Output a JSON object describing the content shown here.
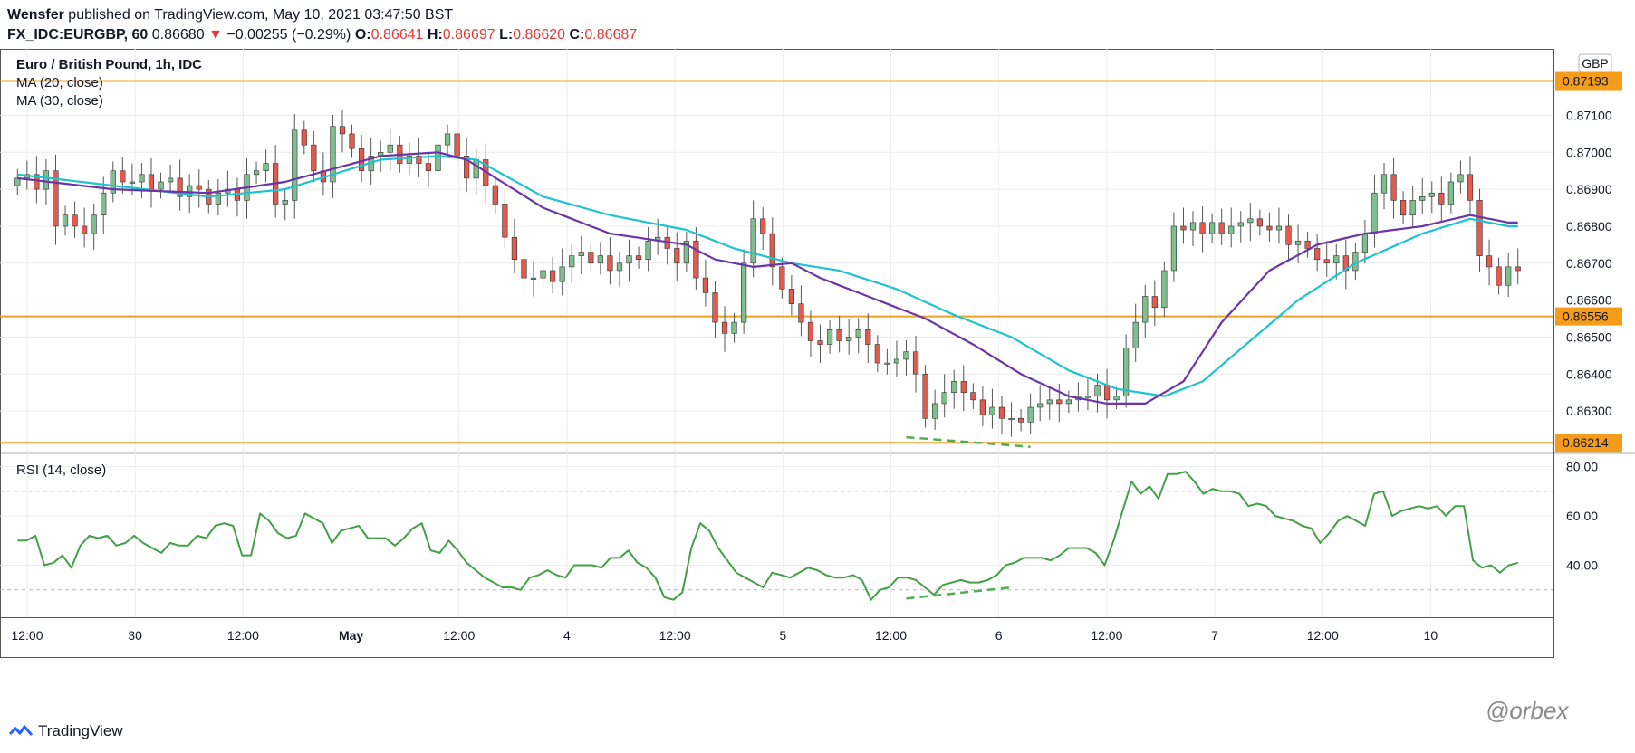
{
  "header": {
    "publisher": "Wensfer",
    "published_text": "published on TradingView.com, May 10, 2021 03:47:50 BST",
    "symbol": "FX_IDC:EURGBP, 60",
    "price": "0.86680",
    "change_arrow": "▼",
    "change": "−0.00255 (−0.29%)",
    "o_label": "O:",
    "o_value": "0.86641",
    "h_label": "H:",
    "h_value": "0.86697",
    "l_label": "L:",
    "l_value": "0.86620",
    "c_label": "C:",
    "c_value": "0.86687"
  },
  "footer": {
    "brand": "TradingView",
    "watermark": "@orbex"
  },
  "chart_data": [
    {
      "type": "candlestick",
      "title": "Euro / British Pound, 1h, IDC",
      "currency": "GBP",
      "indicators": [
        "MA (20, close)",
        "MA (30, close)"
      ],
      "ylim": [
        0.8619,
        0.8728
      ],
      "y_ticks": [
        "0.87100",
        "0.87000",
        "0.86900",
        "0.86800",
        "0.86700",
        "0.86600",
        "0.86500",
        "0.86400",
        "0.86300"
      ],
      "y_tick_values": [
        0.871,
        0.87,
        0.869,
        0.868,
        0.867,
        0.866,
        0.865,
        0.864,
        0.863
      ],
      "x_ticks": [
        "12:00",
        "30",
        "12:00",
        "May",
        "12:00",
        "4",
        "12:00",
        "5",
        "12:00",
        "6",
        "12:00",
        "7",
        "12:00",
        "10"
      ],
      "x_tick_bold": [
        false,
        false,
        false,
        true,
        false,
        false,
        false,
        false,
        false,
        false,
        false,
        false,
        false,
        false
      ],
      "levels": [
        {
          "value": 0.87193,
          "label": "0.87193"
        },
        {
          "value": 0.86556,
          "label": "0.86556"
        },
        {
          "value": 0.86214,
          "label": "0.86214"
        }
      ],
      "candles_close": [
        0.8693,
        0.8694,
        0.869,
        0.8695,
        0.868,
        0.8683,
        0.868,
        0.8678,
        0.8683,
        0.8689,
        0.8695,
        0.8692,
        0.8692,
        0.8694,
        0.869,
        0.8692,
        0.8693,
        0.8688,
        0.8691,
        0.869,
        0.8686,
        0.8689,
        0.869,
        0.8687,
        0.8694,
        0.8695,
        0.8697,
        0.8686,
        0.8687,
        0.8706,
        0.8702,
        0.8695,
        0.8692,
        0.8707,
        0.8705,
        0.8701,
        0.8695,
        0.8699,
        0.87,
        0.8702,
        0.8697,
        0.8699,
        0.8697,
        0.8695,
        0.8702,
        0.8705,
        0.8699,
        0.8693,
        0.8698,
        0.8691,
        0.8686,
        0.8677,
        0.8671,
        0.8666,
        0.8666,
        0.8668,
        0.8665,
        0.8669,
        0.8672,
        0.8673,
        0.867,
        0.8672,
        0.8668,
        0.867,
        0.8672,
        0.8671,
        0.8676,
        0.8677,
        0.8674,
        0.867,
        0.8676,
        0.8666,
        0.8662,
        0.8654,
        0.8651,
        0.8654,
        0.867,
        0.8682,
        0.8678,
        0.8669,
        0.8663,
        0.8659,
        0.8654,
        0.8649,
        0.8648,
        0.8652,
        0.8649,
        0.865,
        0.8652,
        0.8648,
        0.8643,
        0.8643,
        0.8644,
        0.8646,
        0.864,
        0.8628,
        0.8632,
        0.8635,
        0.8638,
        0.8635,
        0.8633,
        0.8629,
        0.8631,
        0.8628,
        0.8628,
        0.8627,
        0.8631,
        0.8632,
        0.8633,
        0.8632,
        0.8633,
        0.8634,
        0.8634,
        0.8637,
        0.8633,
        0.8634,
        0.8647,
        0.8654,
        0.8661,
        0.8658,
        0.8668,
        0.868,
        0.8679,
        0.8681,
        0.8678,
        0.8681,
        0.8678,
        0.868,
        0.8681,
        0.8682,
        0.868,
        0.8679,
        0.868,
        0.8675,
        0.8676,
        0.8674,
        0.8671,
        0.867,
        0.8672,
        0.8668,
        0.8673,
        0.8678,
        0.8689,
        0.8694,
        0.8687,
        0.8683,
        0.8687,
        0.8688,
        0.8689,
        0.8686,
        0.8692,
        0.8694,
        0.8687,
        0.8672,
        0.8669,
        0.8664,
        0.8669,
        0.8668
      ],
      "ma20_anchors": [
        [
          0,
          0.8693
        ],
        [
          10,
          0.869
        ],
        [
          20,
          0.8689
        ],
        [
          28,
          0.8692
        ],
        [
          38,
          0.8699
        ],
        [
          44,
          0.87
        ],
        [
          47,
          0.8698
        ],
        [
          55,
          0.8685
        ],
        [
          62,
          0.8678
        ],
        [
          70,
          0.8675
        ],
        [
          73,
          0.8671
        ],
        [
          77,
          0.8669
        ],
        [
          81,
          0.867
        ],
        [
          84,
          0.8666
        ],
        [
          90,
          0.866
        ],
        [
          95,
          0.8655
        ],
        [
          100,
          0.8648
        ],
        [
          105,
          0.864
        ],
        [
          110,
          0.8634
        ],
        [
          114,
          0.8632
        ],
        [
          118,
          0.8632
        ],
        [
          122,
          0.8638
        ],
        [
          126,
          0.8654
        ],
        [
          131,
          0.8668
        ],
        [
          136,
          0.8675
        ],
        [
          141,
          0.8678
        ],
        [
          147,
          0.868
        ],
        [
          152,
          0.8683
        ],
        [
          156,
          0.8681
        ]
      ],
      "ma30_anchors": [
        [
          0,
          0.8694
        ],
        [
          10,
          0.8691
        ],
        [
          20,
          0.8688
        ],
        [
          28,
          0.869
        ],
        [
          38,
          0.8698
        ],
        [
          44,
          0.8699
        ],
        [
          48,
          0.8698
        ],
        [
          55,
          0.8688
        ],
        [
          62,
          0.8683
        ],
        [
          70,
          0.8679
        ],
        [
          75,
          0.8674
        ],
        [
          81,
          0.867
        ],
        [
          86,
          0.8668
        ],
        [
          92,
          0.8663
        ],
        [
          98,
          0.8656
        ],
        [
          104,
          0.865
        ],
        [
          110,
          0.8641
        ],
        [
          115,
          0.8636
        ],
        [
          120,
          0.8634
        ],
        [
          124,
          0.8638
        ],
        [
          129,
          0.8649
        ],
        [
          134,
          0.866
        ],
        [
          140,
          0.867
        ],
        [
          147,
          0.8678
        ],
        [
          152,
          0.8682
        ],
        [
          156,
          0.868
        ]
      ]
    },
    {
      "type": "line",
      "title": "RSI (14, close)",
      "ylim": [
        20,
        85
      ],
      "y_ticks": [
        "80.00",
        "60.00",
        "40.00"
      ],
      "y_tick_values": [
        80,
        60,
        40
      ],
      "bands": [
        70,
        30
      ],
      "values": [
        50,
        50,
        52,
        40,
        41,
        44,
        39,
        48,
        52,
        51,
        52,
        48,
        49,
        52,
        49,
        47,
        45,
        49,
        48,
        48,
        52,
        51,
        56,
        57,
        56,
        44,
        44,
        61,
        58,
        53,
        51,
        52,
        61,
        59,
        57,
        49,
        54,
        55,
        56,
        51,
        51,
        51,
        48,
        51,
        55,
        57,
        46,
        45,
        50,
        46,
        41,
        38,
        35,
        33,
        31,
        31,
        30,
        35,
        36,
        38,
        36,
        35,
        40,
        40,
        40,
        39,
        43,
        43,
        46,
        41,
        39,
        35,
        27,
        26,
        29,
        47,
        57,
        54,
        47,
        42,
        37,
        35,
        33,
        31,
        37,
        36,
        35,
        37,
        39,
        38,
        36,
        35,
        35,
        36,
        34,
        26,
        30,
        31,
        35,
        35,
        34,
        31,
        28,
        32,
        33,
        34,
        33,
        33,
        34,
        36,
        40,
        41,
        43,
        43,
        43,
        42,
        44,
        47,
        47,
        47,
        45,
        40,
        50,
        62,
        74,
        69,
        72,
        67,
        77,
        77,
        78,
        74,
        69,
        71,
        70,
        70,
        69,
        64,
        65,
        64,
        60,
        59,
        58,
        56,
        55,
        49,
        53,
        58,
        60,
        58,
        56,
        69,
        70,
        60,
        62,
        63,
        64,
        63,
        64,
        60,
        64,
        64,
        42,
        39,
        40,
        37,
        40,
        41
      ]
    }
  ]
}
